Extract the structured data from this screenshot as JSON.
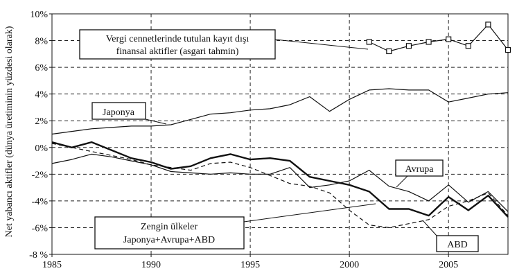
{
  "chart_data": {
    "type": "line",
    "title": "",
    "xlabel": "",
    "ylabel": "Net yabancı aktifler (dünya üretiminin yüzdesi olarak)",
    "xlim": [
      1985,
      2008
    ],
    "ylim": [
      -8,
      10
    ],
    "x_ticks": [
      1985,
      1990,
      1995,
      2000,
      2005
    ],
    "x_tick_labels": [
      "1985",
      "1990",
      "1995",
      "2000",
      "2005"
    ],
    "y_ticks": [
      -8,
      -6,
      -4,
      -2,
      0,
      2,
      4,
      6,
      8,
      10
    ],
    "y_tick_labels": [
      "-8 %",
      "-6%",
      "-4%",
      "-2%",
      "0%",
      "2%",
      "4%",
      "6%",
      "8%",
      "10%"
    ],
    "grid": "dashed",
    "series": [
      {
        "name": "Vergi cennetlerinde tutulan kayıt dışı finansal aktifler (asgari tahmin)",
        "style": "marker-square",
        "x": [
          2001,
          2002,
          2003,
          2004,
          2005,
          2006,
          2007,
          2008
        ],
        "values": [
          7.9,
          7.2,
          7.6,
          7.9,
          8.1,
          7.6,
          9.2,
          7.3
        ]
      },
      {
        "name": "Japonya",
        "style": "thin-solid",
        "x": [
          1985,
          1986,
          1987,
          1988,
          1989,
          1990,
          1991,
          1992,
          1993,
          1994,
          1995,
          1996,
          1997,
          1998,
          1999,
          2000,
          2001,
          2002,
          2003,
          2004,
          2005,
          2006,
          2007,
          2008
        ],
        "values": [
          1.0,
          1.2,
          1.4,
          1.5,
          1.6,
          1.6,
          1.7,
          2.1,
          2.5,
          2.6,
          2.8,
          2.9,
          3.2,
          3.8,
          2.7,
          3.6,
          4.3,
          4.4,
          4.3,
          4.3,
          3.4,
          3.7,
          4.0,
          4.1
        ]
      },
      {
        "name": "Avrupa",
        "style": "thin-solid",
        "x": [
          1985,
          1986,
          1987,
          1988,
          1989,
          1990,
          1991,
          1992,
          1993,
          1994,
          1995,
          1996,
          1997,
          1998,
          1999,
          2000,
          2001,
          2002,
          2003,
          2004,
          2005,
          2006,
          2007,
          2008
        ],
        "values": [
          -1.2,
          -0.9,
          -0.5,
          -0.7,
          -1.0,
          -1.3,
          -1.8,
          -1.9,
          -2.0,
          -1.9,
          -2.0,
          -2.0,
          -1.5,
          -3.0,
          -2.8,
          -2.5,
          -1.7,
          -2.9,
          -3.3,
          -4.0,
          -2.8,
          -4.1,
          -3.3,
          -4.8
        ]
      },
      {
        "name": "ABD",
        "style": "dashed",
        "x": [
          1985,
          1986,
          1987,
          1988,
          1989,
          1990,
          1991,
          1992,
          1993,
          1994,
          1995,
          1996,
          1997,
          1998,
          1999,
          2000,
          2001,
          2002,
          2003,
          2004,
          2005,
          2006,
          2007,
          2008
        ],
        "values": [
          0.3,
          0.0,
          -0.3,
          -0.6,
          -0.9,
          -1.3,
          -1.5,
          -1.7,
          -1.2,
          -1.1,
          -1.5,
          -2.1,
          -2.7,
          -2.9,
          -3.4,
          -4.7,
          -5.8,
          -6.0,
          -5.7,
          -5.4,
          -4.4,
          -4.0,
          -3.4,
          -5.1
        ]
      },
      {
        "name": "Zengin ülkeler Japonya+Avrupa+ABD",
        "style": "thick-solid",
        "x": [
          1985,
          1986,
          1987,
          1988,
          1989,
          1990,
          1991,
          1992,
          1993,
          1994,
          1995,
          1996,
          1997,
          1998,
          1999,
          2000,
          2001,
          2002,
          2003,
          2004,
          2005,
          2006,
          2007,
          2008
        ],
        "values": [
          0.4,
          0.0,
          0.4,
          -0.2,
          -0.8,
          -1.1,
          -1.6,
          -1.4,
          -0.8,
          -0.5,
          -0.9,
          -0.8,
          -1.0,
          -2.2,
          -2.5,
          -2.8,
          -3.3,
          -4.6,
          -4.6,
          -5.1,
          -3.7,
          -4.7,
          -3.6,
          -5.2
        ]
      }
    ]
  },
  "annotations": {
    "vergi_line1": "Vergi cennetlerinde tutulan kayıt dışı",
    "vergi_line2": "finansal aktifler (asgari tahmin)",
    "japonya": "Japonya",
    "avrupa": "Avrupa",
    "zengin_line1": "Zengin ülkeler",
    "zengin_line2": "Japonya+Avrupa+ABD",
    "abd": "ABD"
  },
  "colors": {
    "line": "#111111",
    "grid": "#222222",
    "background": "#ffffff"
  }
}
